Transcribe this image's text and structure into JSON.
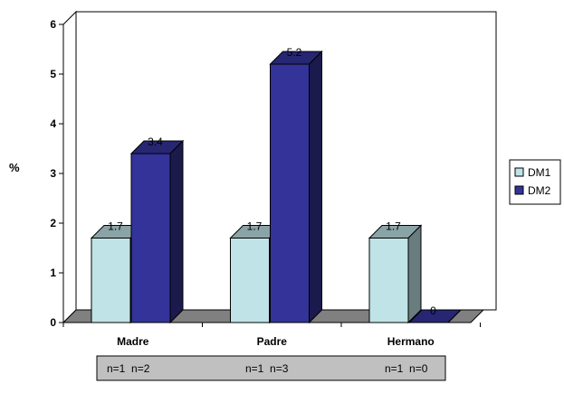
{
  "chart_data": {
    "type": "bar",
    "style": "3d-clustered-column",
    "categories": [
      "Madre",
      "Padre",
      "Hermano"
    ],
    "series": [
      {
        "name": "DM1",
        "values": [
          1.7,
          1.7,
          1.7
        ],
        "color": "#bfe3e6"
      },
      {
        "name": "DM2",
        "values": [
          3.4,
          5.2,
          0
        ],
        "color": "#333399"
      }
    ],
    "data_labels": [
      [
        "1.7",
        "1.7",
        "1.7"
      ],
      [
        "3.4",
        "5.2",
        "0"
      ]
    ],
    "ylabel": "%",
    "ylim": [
      0,
      6
    ],
    "yticks": [
      0,
      1,
      2,
      3,
      4,
      5,
      6
    ],
    "grid": false,
    "legend_position": "right",
    "floor_color": "#808080",
    "sample_sizes_box_color": "#c0c0c0",
    "sample_sizes": [
      "n=1  n=2",
      "n=1  n=3",
      "n=1  n=0"
    ]
  }
}
